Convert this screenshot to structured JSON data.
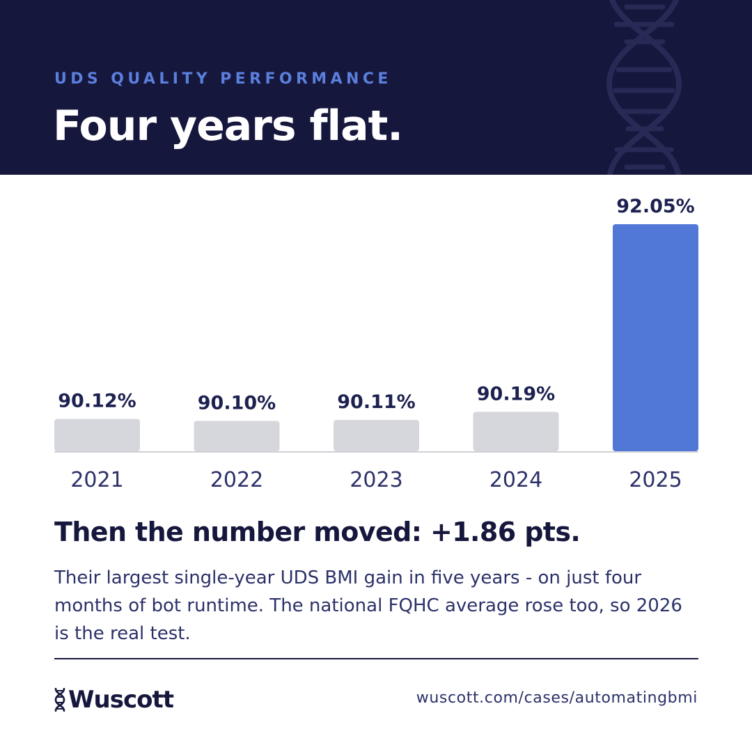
{
  "header": {
    "eyebrow": "UDS QUALITY PERFORMANCE",
    "title": "Four years flat."
  },
  "chart_data": {
    "type": "bar",
    "categories": [
      "2021",
      "2022",
      "2023",
      "2024",
      "2025"
    ],
    "values": [
      90.12,
      90.1,
      90.11,
      90.19,
      92.05
    ],
    "value_labels": [
      "90.12%",
      "90.10%",
      "90.11%",
      "90.19%",
      "92.05%"
    ],
    "ylim": [
      89.8,
      92.05
    ],
    "grid": false,
    "colors": {
      "default_bar": "#d6d7dc",
      "highlight_bar": "#5178d6",
      "label": "#1d2150",
      "axis": "#cfd0d6"
    },
    "highlight_index": 4
  },
  "summary": {
    "headline": "Then the number moved: +1.86 pts.",
    "body": "Their largest single-year UDS BMI gain in five years - on just four months of bot runtime. The national FQHC average rose too, so 2026 is the real test."
  },
  "footer": {
    "logo_text": "Wuscott",
    "logo_icon": "dna-icon",
    "url": "wuscott.com/cases/automatingbmi"
  },
  "colors": {
    "header_bg": "#16173d",
    "accent": "#5b7fdc"
  }
}
